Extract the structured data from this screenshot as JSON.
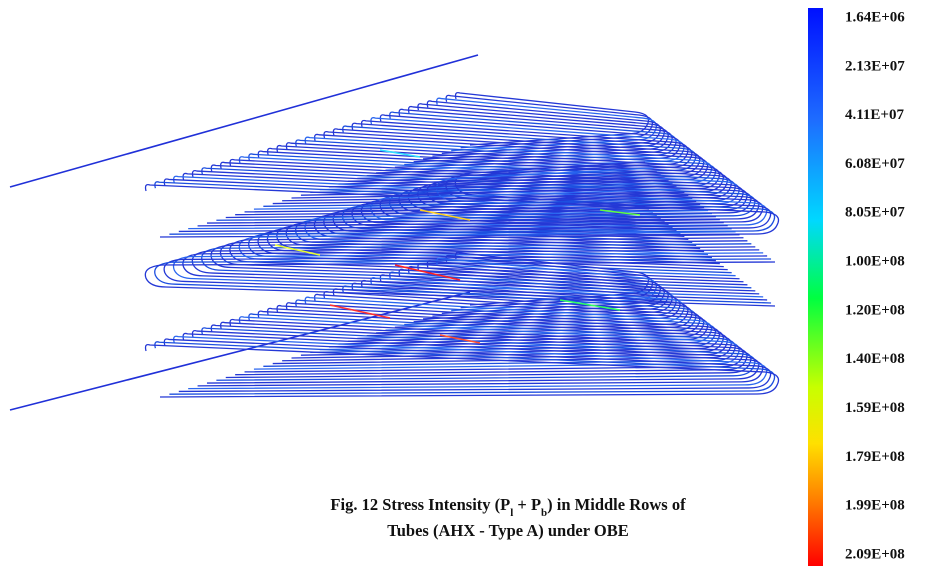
{
  "colorbar": {
    "labels": [
      "1.64E+06",
      "2.13E+07",
      "4.11E+07",
      "6.08E+07",
      "8.05E+07",
      "1.00E+08",
      "1.20E+08",
      "1.40E+08",
      "1.59E+08",
      "1.79E+08",
      "1.99E+08",
      "2.09E+08"
    ]
  },
  "caption": {
    "line1": [
      "Fig. 12 Stress Intensity (P",
      "l",
      " + P",
      "b",
      ") in Middle Rows of"
    ],
    "line2": "Tubes (AHX - Type A) under OBE"
  }
}
